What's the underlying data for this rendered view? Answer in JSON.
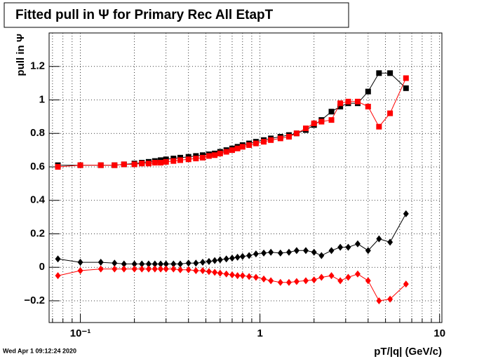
{
  "chart_data": {
    "type": "scatter",
    "title": "Fitted pull in  Ψ  for Primary Rec All EtapT",
    "xlabel": "pT/|q| (GeV/c)",
    "ylabel": "pull in  Ψ",
    "timestamp": "Wed Apr  1 09:12:24 2020",
    "xscale": "log",
    "xlim": [
      0.067,
      10.3
    ],
    "ylim": [
      -0.33,
      1.4
    ],
    "xticks": [
      {
        "value": 0.1,
        "label": "10⁻¹"
      },
      1,
      10
    ],
    "xminor_ticks": [
      0.07,
      0.08,
      0.09,
      0.2,
      0.3,
      0.4,
      0.5,
      0.6,
      0.7,
      0.8,
      0.9,
      2,
      3,
      4,
      5,
      6,
      7,
      8,
      9
    ],
    "yticks": [
      {
        "value": -0.2,
        "label": "−0.2"
      },
      0,
      0.2,
      0.4,
      0.6,
      0.8,
      1,
      1.2
    ],
    "grid": true,
    "x": [
      0.075,
      0.1,
      0.13,
      0.155,
      0.175,
      0.2,
      0.22,
      0.24,
      0.26,
      0.28,
      0.3,
      0.33,
      0.36,
      0.4,
      0.44,
      0.48,
      0.52,
      0.56,
      0.6,
      0.65,
      0.7,
      0.75,
      0.8,
      0.87,
      0.95,
      1.05,
      1.15,
      1.3,
      1.45,
      1.6,
      1.8,
      2.0,
      2.2,
      2.5,
      2.8,
      3.1,
      3.5,
      4.0,
      4.6,
      5.3,
      6.5
    ],
    "series": [
      {
        "marker": "square",
        "color": "#000000",
        "values": [
          0.61,
          0.61,
          0.61,
          0.61,
          0.615,
          0.62,
          0.625,
          0.63,
          0.635,
          0.64,
          0.645,
          0.65,
          0.655,
          0.66,
          0.665,
          0.67,
          0.675,
          0.68,
          0.69,
          0.7,
          0.71,
          0.72,
          0.73,
          0.74,
          0.75,
          0.76,
          0.77,
          0.78,
          0.79,
          0.8,
          0.82,
          0.85,
          0.88,
          0.93,
          0.96,
          0.98,
          0.98,
          1.05,
          1.16,
          1.16,
          1.07
        ]
      },
      {
        "marker": "square",
        "color": "#ff0000",
        "values": [
          0.6,
          0.61,
          0.61,
          0.61,
          0.615,
          0.615,
          0.62,
          0.62,
          0.625,
          0.625,
          0.63,
          0.635,
          0.64,
          0.645,
          0.65,
          0.655,
          0.665,
          0.67,
          0.68,
          0.69,
          0.7,
          0.71,
          0.72,
          0.73,
          0.74,
          0.75,
          0.76,
          0.77,
          0.78,
          0.8,
          0.83,
          0.86,
          0.87,
          0.88,
          0.98,
          0.99,
          0.99,
          0.96,
          0.84,
          0.92,
          1.13
        ]
      },
      {
        "marker": "diamond",
        "color": "#000000",
        "values": [
          0.05,
          0.03,
          0.03,
          0.025,
          0.02,
          0.02,
          0.02,
          0.02,
          0.02,
          0.02,
          0.02,
          0.02,
          0.02,
          0.025,
          0.025,
          0.03,
          0.035,
          0.04,
          0.045,
          0.05,
          0.055,
          0.06,
          0.065,
          0.07,
          0.08,
          0.085,
          0.09,
          0.085,
          0.09,
          0.1,
          0.1,
          0.09,
          0.07,
          0.1,
          0.12,
          0.12,
          0.14,
          0.1,
          0.17,
          0.15,
          0.32
        ]
      },
      {
        "marker": "diamond",
        "color": "#ff0000",
        "values": [
          -0.05,
          -0.02,
          -0.01,
          -0.01,
          -0.01,
          -0.01,
          -0.01,
          -0.01,
          -0.01,
          -0.01,
          -0.01,
          -0.01,
          -0.015,
          -0.015,
          -0.02,
          -0.02,
          -0.025,
          -0.03,
          -0.035,
          -0.04,
          -0.045,
          -0.05,
          -0.05,
          -0.055,
          -0.06,
          -0.07,
          -0.08,
          -0.09,
          -0.09,
          -0.085,
          -0.08,
          -0.075,
          -0.06,
          -0.05,
          -0.08,
          -0.06,
          -0.04,
          -0.08,
          -0.2,
          -0.19,
          -0.1
        ]
      }
    ]
  }
}
